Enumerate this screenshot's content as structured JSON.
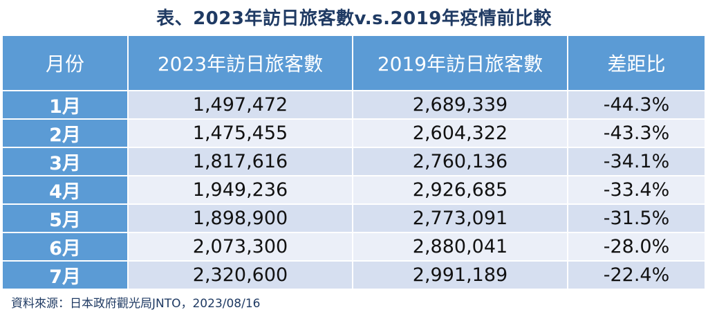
{
  "title": "表、2023年訪日旅客數v.s.2019年疫情前比較",
  "headers": [
    "月份",
    "2023年訪日旅客數",
    "2019年訪日旅客數",
    "差距比"
  ],
  "rows": [
    {
      "month": "1月",
      "v2023": "1,497,472",
      "v2019": "2,689,339",
      "diff": "-44.3%"
    },
    {
      "month": "2月",
      "v2023": "1,475,455",
      "v2019": "2,604,322",
      "diff": "-43.3%"
    },
    {
      "month": "3月",
      "v2023": "1,817,616",
      "v2019": "2,760,136",
      "diff": "-34.1%"
    },
    {
      "month": "4月",
      "v2023": "1,949,236",
      "v2019": "2,926,685",
      "diff": "-33.4%"
    },
    {
      "month": "5月",
      "v2023": "1,898,900",
      "v2019": "2,773,091",
      "diff": "-31.5%"
    },
    {
      "month": "6月",
      "v2023": "2,073,300",
      "v2019": "2,880,041",
      "diff": "-28.0%"
    },
    {
      "month": "7月",
      "v2023": "2,320,600",
      "v2019": "2,991,189",
      "diff": "-22.4%"
    }
  ],
  "source": "資料來源：日本政府觀光局JNTO，2023/08/16",
  "colors": {
    "header_bg": "#5b9bd5",
    "row_odd": "#d6dff0",
    "row_even": "#ebeff8",
    "title": "#1f3a63"
  }
}
